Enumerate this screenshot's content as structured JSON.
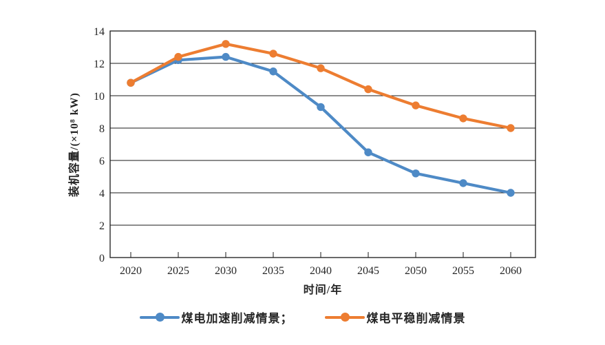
{
  "chart_data": {
    "type": "line",
    "title": "",
    "categories": [
      "2020",
      "2025",
      "2030",
      "2035",
      "2040",
      "2045",
      "2050",
      "2055",
      "2060"
    ],
    "series": [
      {
        "name": "煤电加速削减情景",
        "legend_label": "煤电加速削减情景；",
        "color": "#4E8AC6",
        "values": [
          10.8,
          12.2,
          12.4,
          11.5,
          9.3,
          6.5,
          5.2,
          4.6,
          4.0
        ]
      },
      {
        "name": "煤电平稳削减情景",
        "legend_label": "煤电平稳削减情景",
        "color": "#ED7D31",
        "values": [
          10.8,
          12.4,
          13.2,
          12.6,
          11.7,
          10.4,
          9.4,
          8.6,
          8.0
        ]
      }
    ],
    "xlabel": "时间/年",
    "ylabel": "装机容量/(×10⁸ kW)",
    "ylim": [
      0,
      14
    ],
    "ytick_step": 2,
    "yticks": [
      "0",
      "2",
      "4",
      "6",
      "8",
      "10",
      "12",
      "14"
    ],
    "grid": true,
    "legend_position": "bottom"
  },
  "colors": {
    "axis": "#1a1a1a",
    "grid": "#1a1a1a",
    "text": "#262626",
    "background": "#ffffff"
  }
}
